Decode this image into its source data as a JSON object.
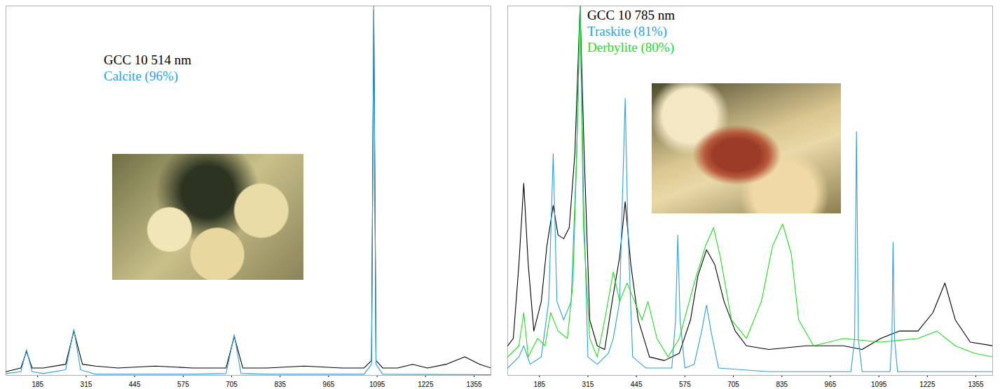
{
  "chart_data": [
    {
      "type": "line",
      "xlim": [
        100,
        1400
      ],
      "xticks": [
        185,
        315,
        445,
        575,
        705,
        835,
        965,
        1095,
        1225,
        1355
      ],
      "ylim": [
        0,
        1
      ],
      "tick_labels": "x",
      "legend": "upper left",
      "series": [
        {
          "name": "GCC 10 514 nm",
          "color": "#000000",
          "x": [
            100,
            140,
            155,
            170,
            200,
            260,
            282,
            305,
            340,
            400,
            500,
            600,
            690,
            712,
            735,
            800,
            900,
            1000,
            1060,
            1080,
            1086,
            1092,
            1110,
            1150,
            1190,
            1230,
            1280,
            1330,
            1370,
            1400
          ],
          "values": [
            0.01,
            0.02,
            0.065,
            0.02,
            0.02,
            0.03,
            0.12,
            0.03,
            0.025,
            0.02,
            0.025,
            0.02,
            0.02,
            0.105,
            0.02,
            0.02,
            0.025,
            0.02,
            0.02,
            0.04,
            0.99,
            0.04,
            0.02,
            0.02,
            0.03,
            0.02,
            0.03,
            0.05,
            0.03,
            0.02
          ]
        },
        {
          "name": "Calcite (96%)",
          "color": "#2e9fd9",
          "x": [
            100,
            140,
            155,
            170,
            200,
            260,
            282,
            300,
            340,
            600,
            690,
            712,
            730,
            800,
            1060,
            1080,
            1086,
            1092,
            1110,
            1400
          ],
          "values": [
            0.005,
            0.01,
            0.07,
            0.01,
            0.005,
            0.015,
            0.125,
            0.015,
            0.003,
            0.003,
            0.005,
            0.11,
            0.005,
            0.003,
            0.003,
            0.03,
            1.0,
            0.03,
            0.003,
            0.002
          ]
        }
      ]
    },
    {
      "type": "line",
      "xlim": [
        100,
        1400
      ],
      "xticks": [
        185,
        315,
        445,
        575,
        705,
        835,
        965,
        1095,
        1225,
        1355
      ],
      "ylim": [
        0,
        1
      ],
      "tick_labels": "x",
      "legend": "top",
      "series": [
        {
          "name": "GCC 10 785 nm",
          "color": "#000000",
          "x": [
            100,
            115,
            130,
            143,
            155,
            170,
            190,
            205,
            222,
            235,
            250,
            265,
            280,
            294,
            305,
            320,
            340,
            360,
            380,
            400,
            415,
            430,
            450,
            480,
            520,
            560,
            590,
            610,
            633,
            655,
            680,
            710,
            740,
            800,
            900,
            1000,
            1050,
            1100,
            1150,
            1200,
            1240,
            1272,
            1300,
            1340,
            1400
          ],
          "values": [
            0.08,
            0.1,
            0.3,
            0.52,
            0.3,
            0.12,
            0.2,
            0.35,
            0.46,
            0.38,
            0.37,
            0.4,
            0.6,
            1.0,
            0.6,
            0.15,
            0.08,
            0.07,
            0.2,
            0.32,
            0.47,
            0.3,
            0.15,
            0.05,
            0.04,
            0.06,
            0.15,
            0.27,
            0.34,
            0.3,
            0.2,
            0.12,
            0.08,
            0.07,
            0.08,
            0.08,
            0.07,
            0.1,
            0.12,
            0.12,
            0.17,
            0.25,
            0.15,
            0.09,
            0.08
          ]
        },
        {
          "name": "Traskite (81%)",
          "color": "#2e9fd9",
          "x": [
            100,
            130,
            143,
            160,
            190,
            210,
            222,
            232,
            250,
            270,
            285,
            294,
            303,
            315,
            340,
            370,
            383,
            400,
            408,
            415,
            422,
            435,
            470,
            540,
            550,
            556,
            562,
            575,
            600,
            620,
            633,
            645,
            665,
            800,
            1020,
            1030,
            1035,
            1040,
            1050,
            1125,
            1130,
            1133,
            1137,
            1145,
            1400
          ],
          "values": [
            0.02,
            0.05,
            0.08,
            0.03,
            0.05,
            0.2,
            0.6,
            0.2,
            0.15,
            0.2,
            0.6,
            1.0,
            0.5,
            0.05,
            0.03,
            0.06,
            0.1,
            0.2,
            0.5,
            0.75,
            0.4,
            0.05,
            0.02,
            0.02,
            0.15,
            0.38,
            0.15,
            0.02,
            0.03,
            0.12,
            0.19,
            0.12,
            0.02,
            0.01,
            0.01,
            0.1,
            0.66,
            0.1,
            0.01,
            0.01,
            0.1,
            0.36,
            0.1,
            0.01,
            0.01
          ]
        },
        {
          "name": "Derbylite (80%)",
          "color": "#22dd22",
          "x": [
            100,
            130,
            143,
            155,
            180,
            200,
            215,
            235,
            260,
            275,
            285,
            294,
            303,
            320,
            340,
            360,
            383,
            400,
            420,
            440,
            460,
            476,
            500,
            530,
            560,
            600,
            630,
            652,
            670,
            700,
            740,
            780,
            810,
            837,
            860,
            880,
            920,
            1000,
            1100,
            1200,
            1250,
            1300,
            1350,
            1400
          ],
          "values": [
            0.05,
            0.08,
            0.17,
            0.05,
            0.1,
            0.08,
            0.17,
            0.12,
            0.1,
            0.25,
            0.6,
            1.0,
            0.4,
            0.1,
            0.05,
            0.15,
            0.28,
            0.2,
            0.25,
            0.2,
            0.15,
            0.2,
            0.1,
            0.05,
            0.1,
            0.25,
            0.35,
            0.4,
            0.32,
            0.15,
            0.1,
            0.2,
            0.35,
            0.41,
            0.33,
            0.15,
            0.08,
            0.1,
            0.09,
            0.1,
            0.12,
            0.08,
            0.06,
            0.05
          ]
        }
      ]
    }
  ]
}
